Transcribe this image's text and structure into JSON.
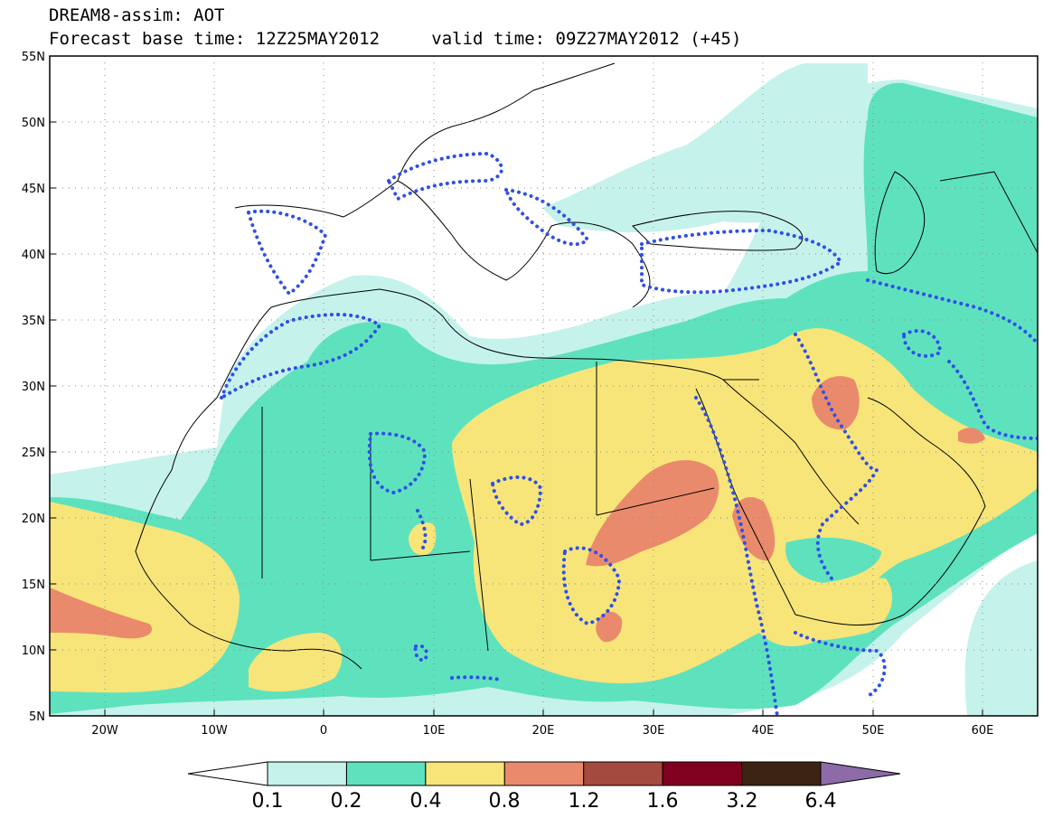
{
  "header": {
    "title_line1": "DREAM8-assim: AOT",
    "base_time": "Forecast base time: 12Z25MAY2012",
    "valid_time": "valid time: 09Z27MAY2012 (+45)"
  },
  "axes": {
    "lat_labels": [
      "55N",
      "50N",
      "45N",
      "40N",
      "35N",
      "30N",
      "25N",
      "20N",
      "15N",
      "10N",
      "5N"
    ],
    "lon_labels": [
      "20W",
      "10W",
      "0",
      "10E",
      "20E",
      "30E",
      "40E",
      "50E",
      "60E"
    ],
    "lat_range": [
      5,
      55
    ],
    "lon_range": [
      -25,
      65
    ]
  },
  "colorbar": {
    "levels": [
      "0.1",
      "0.2",
      "0.4",
      "0.8",
      "1.2",
      "1.6",
      "3.2",
      "6.4"
    ],
    "colors": [
      "#c6f2ec",
      "#5ee2be",
      "#f7e57a",
      "#ea8a6c",
      "#a54a3e",
      "#800020",
      "#3d2312"
    ],
    "under_color": "#ffffff",
    "over_color": "#8c6ba8"
  },
  "legend_colors": {
    "coastline": "#000000",
    "assim_contour": "#2f4fe8"
  }
}
